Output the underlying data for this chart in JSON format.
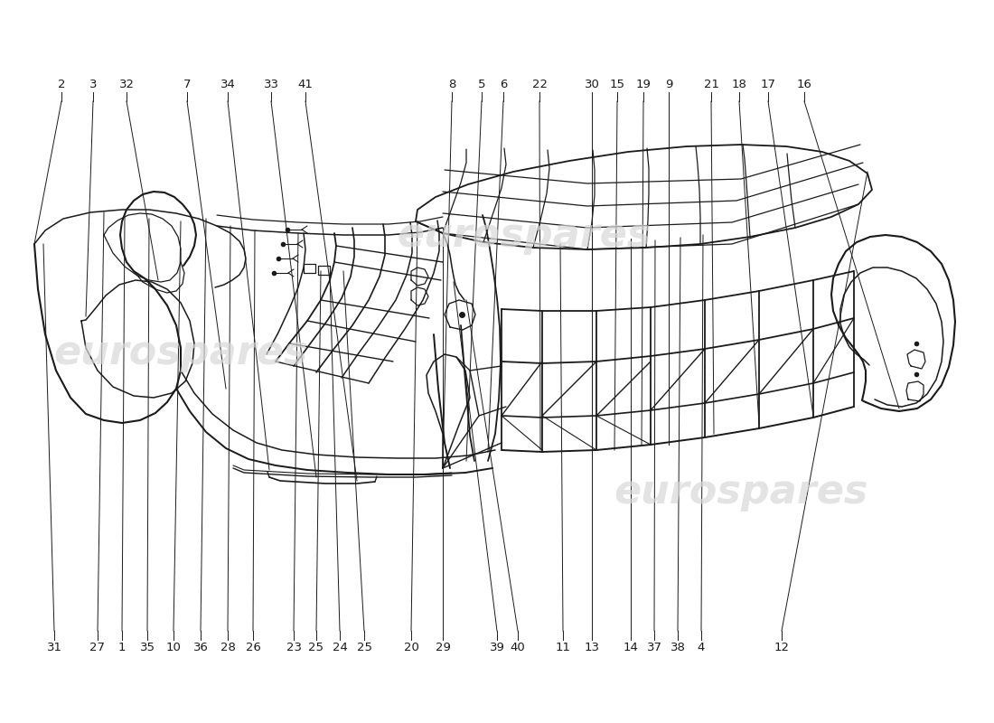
{
  "background_color": "#ffffff",
  "line_color": "#1a1a1a",
  "watermark_color": "#d8d8d8",
  "top_labels_left": [
    [
      "2",
      68
    ],
    [
      "3",
      103
    ],
    [
      "32",
      140
    ],
    [
      "7",
      207
    ],
    [
      "34",
      252
    ],
    [
      "33",
      300
    ],
    [
      "41",
      338
    ]
  ],
  "top_labels_right": [
    [
      "8",
      500
    ],
    [
      "5",
      533
    ],
    [
      "6",
      557
    ],
    [
      "22",
      597
    ],
    [
      "30",
      655
    ],
    [
      "15",
      683
    ],
    [
      "19",
      712
    ],
    [
      "9",
      740
    ],
    [
      "21",
      787
    ],
    [
      "18",
      818
    ],
    [
      "17",
      850
    ],
    [
      "16",
      890
    ]
  ],
  "bottom_labels_left": [
    [
      "31",
      60
    ],
    [
      "27",
      108
    ],
    [
      "1",
      135
    ],
    [
      "35",
      163
    ],
    [
      "10",
      192
    ],
    [
      "36",
      222
    ],
    [
      "28",
      252
    ],
    [
      "26",
      280
    ],
    [
      "23",
      325
    ],
    [
      "25",
      350
    ],
    [
      "24",
      376
    ],
    [
      "25",
      403
    ]
  ],
  "bottom_labels_right": [
    [
      "20",
      455
    ],
    [
      "29",
      490
    ],
    [
      "39",
      550
    ],
    [
      "40",
      573
    ],
    [
      "11",
      623
    ],
    [
      "13",
      655
    ],
    [
      "14",
      698
    ],
    [
      "37",
      724
    ],
    [
      "38",
      750
    ],
    [
      "4",
      776
    ],
    [
      "12",
      865
    ]
  ]
}
